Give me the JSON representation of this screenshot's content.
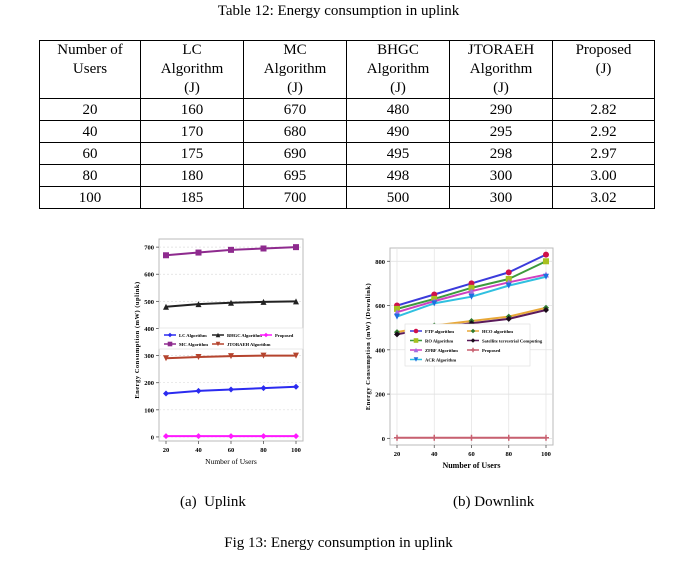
{
  "table": {
    "caption": "Table 12: Energy consumption in uplink",
    "headers": [
      [
        "Number of",
        "Users",
        ""
      ],
      [
        "LC",
        "Algorithm",
        "(J)"
      ],
      [
        "MC",
        "Algorithm",
        "(J)"
      ],
      [
        "BHGC",
        "Algorithm",
        "(J)"
      ],
      [
        "JTORAEH",
        "Algorithm",
        "(J)"
      ],
      [
        "Proposed",
        "(J)",
        ""
      ]
    ],
    "rows": [
      [
        "20",
        "160",
        "670",
        "480",
        "290",
        "2.82"
      ],
      [
        "40",
        "170",
        "680",
        "490",
        "295",
        "2.92"
      ],
      [
        "60",
        "175",
        "690",
        "495",
        "298",
        "2.97"
      ],
      [
        "80",
        "180",
        "695",
        "498",
        "300",
        "3.00"
      ],
      [
        "100",
        "185",
        "700",
        "500",
        "300",
        "3.02"
      ]
    ]
  },
  "chart_data": [
    {
      "type": "line",
      "title": "",
      "xlabel": "Number of Users",
      "ylabel": "Energy Consumption (mW) (uplink)",
      "x": [
        20,
        40,
        60,
        80,
        100
      ],
      "xticks": [
        "20",
        "40",
        "60",
        "80",
        "100"
      ],
      "yticks": [
        "0",
        "100",
        "200",
        "300",
        "400",
        "500",
        "600",
        "700"
      ],
      "ylim": [
        -15,
        730
      ],
      "grid": true,
      "legend": "center",
      "series": [
        {
          "name": "LC Algorithm",
          "color": "#2b2bf0",
          "marker": "diamond",
          "values": [
            160,
            170,
            175,
            180,
            185
          ]
        },
        {
          "name": "MC Algorithm",
          "color": "#8e2a8e",
          "marker": "square",
          "values": [
            670,
            680,
            690,
            695,
            700
          ]
        },
        {
          "name": "BHGC Algorithm",
          "color": "#222222",
          "marker": "triangle",
          "values": [
            480,
            490,
            495,
            498,
            500
          ]
        },
        {
          "name": "JTORAEH Algorithm",
          "color": "#b5442e",
          "marker": "triangle-down",
          "values": [
            290,
            295,
            298,
            300,
            300
          ]
        },
        {
          "name": "Proposed",
          "color": "#ff19ff",
          "marker": "diamond",
          "values": [
            2.82,
            2.92,
            2.97,
            3.0,
            3.02
          ]
        }
      ]
    },
    {
      "type": "line",
      "title": "",
      "xlabel": "Number of Users",
      "ylabel": "Energy Consumption (mW) (Downlink)",
      "x": [
        20,
        40,
        60,
        80,
        100
      ],
      "xticks": [
        "20",
        "40",
        "60",
        "80",
        "100"
      ],
      "yticks": [
        "0",
        "200",
        "400",
        "600",
        "800"
      ],
      "ylim": [
        -30,
        860
      ],
      "grid": true,
      "legend": "center",
      "series": [
        {
          "name": "FTP algorithm",
          "color": "#3b3bdc",
          "marker": "circle",
          "marker_color": "#d0104a",
          "values": [
            600,
            650,
            700,
            750,
            830
          ]
        },
        {
          "name": "RO Algorithm",
          "color": "#3c9a3c",
          "marker": "square",
          "marker_color": "#a8c020",
          "values": [
            585,
            630,
            680,
            720,
            800
          ]
        },
        {
          "name": "ZFBF Algorithm",
          "color": "#d040c0",
          "marker": "triangle",
          "marker_color": "#a070e0",
          "values": [
            570,
            620,
            665,
            705,
            740
          ]
        },
        {
          "name": "ACR Algorithm",
          "color": "#30c0e0",
          "marker": "triangle-down",
          "marker_color": "#1e6ee0",
          "values": [
            550,
            610,
            640,
            690,
            730
          ]
        },
        {
          "name": "HCO algorithm",
          "color": "#e8a838",
          "marker": "diamond",
          "marker_color": "#2f7a2f",
          "values": [
            480,
            510,
            530,
            550,
            590
          ]
        },
        {
          "name": "Satellite terrestrial Computing",
          "color": "#5a1a5a",
          "marker": "diamond",
          "marker_color": "#1a0a1a",
          "values": [
            470,
            500,
            520,
            540,
            580
          ]
        },
        {
          "name": "Proposed",
          "color": "#c86070",
          "marker": "star",
          "marker_color": "#c86070",
          "values": [
            3,
            3,
            3,
            3,
            3
          ]
        }
      ]
    }
  ],
  "captions": {
    "a": "(a)  Uplink",
    "b": "(b) Downlink",
    "figure": "Fig 13: Energy consumption in uplink"
  }
}
